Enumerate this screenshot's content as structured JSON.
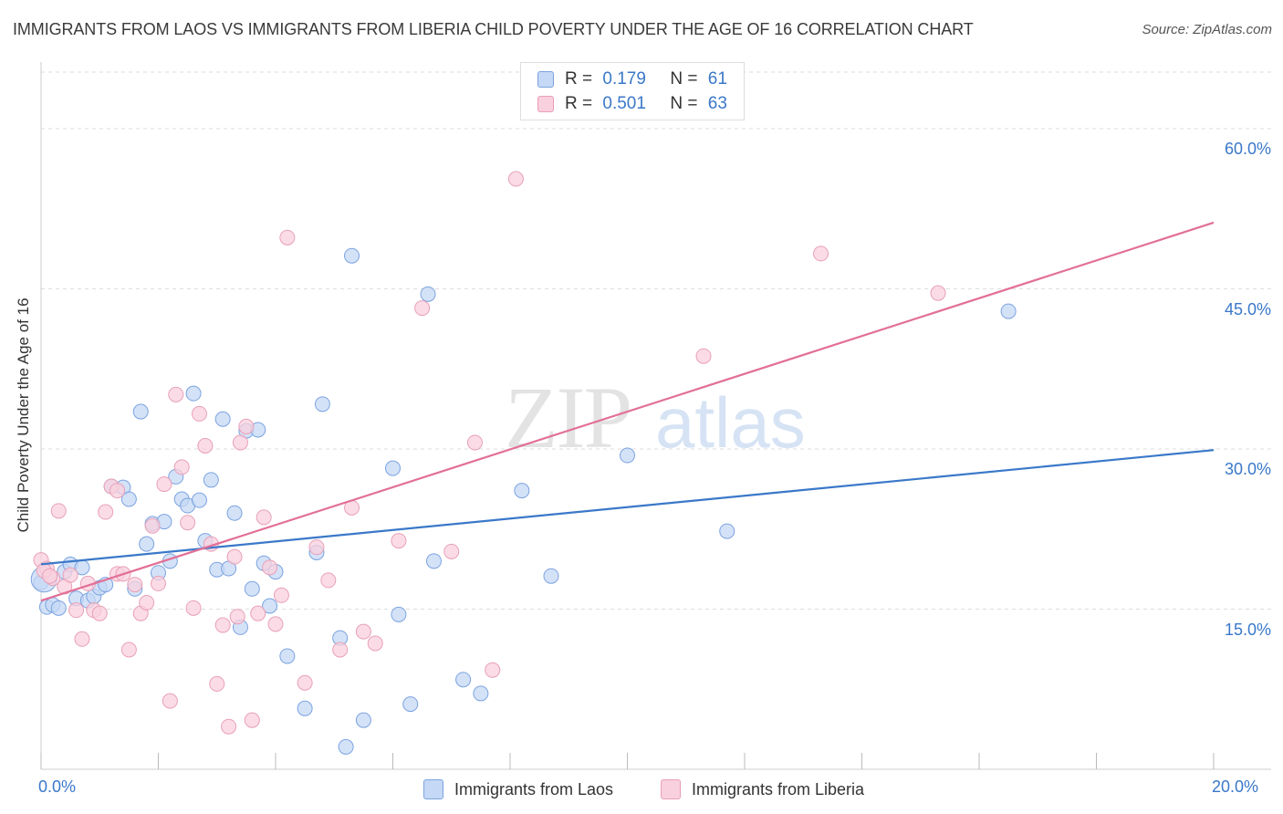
{
  "title": "IMMIGRANTS FROM LAOS VS IMMIGRANTS FROM LIBERIA CHILD POVERTY UNDER THE AGE OF 16 CORRELATION CHART",
  "source": "Source: ZipAtlas.com",
  "watermark": {
    "zip": "ZIP",
    "atlas": "atlas"
  },
  "legend": {
    "r_label": "R =",
    "n_label": "N =",
    "laos": {
      "r": "0.179",
      "n": "61"
    },
    "liberia": {
      "r": "0.501",
      "n": "63"
    }
  },
  "colors": {
    "laos_fill": "#c5d8f5",
    "laos_stroke": "#7ba3e0",
    "laos_line": "#3a78c9",
    "liberia_fill": "#f9d0dd",
    "liberia_stroke": "#e8a0b8",
    "liberia_line": "#e26f96",
    "tick_text": "#3a78c9",
    "grid": "#dddddd"
  },
  "chart_data": {
    "type": "scatter",
    "title": "IMMIGRANTS FROM LAOS VS IMMIGRANTS FROM LIBERIA CHILD POVERTY UNDER THE AGE OF 16 CORRELATION CHART",
    "xlabel": "",
    "ylabel": "Child Poverty Under the Age of 16",
    "xlim": [
      0,
      20
    ],
    "ylim": [
      0,
      60
    ],
    "x_tick_labels": [
      "0.0%",
      "20.0%"
    ],
    "y_ticks": [
      15,
      30,
      45,
      60
    ],
    "y_tick_labels": [
      "15.0%",
      "30.0%",
      "45.0%",
      "60.0%"
    ],
    "grid": true,
    "legend_position": "top-center",
    "series": [
      {
        "name": "Immigrants from Laos",
        "r": 0.179,
        "n": 61,
        "trend": {
          "x": [
            0,
            20
          ],
          "y": [
            19.2,
            29.9
          ]
        },
        "points": [
          [
            0.0,
            17.5
          ],
          [
            0.1,
            15.2
          ],
          [
            0.2,
            15.4
          ],
          [
            0.3,
            15.1
          ],
          [
            0.4,
            18.5
          ],
          [
            0.5,
            19.2
          ],
          [
            0.6,
            16.0
          ],
          [
            0.7,
            18.9
          ],
          [
            0.8,
            15.8
          ],
          [
            0.9,
            16.2
          ],
          [
            1.0,
            17.0
          ],
          [
            1.1,
            17.3
          ],
          [
            1.2,
            26.5
          ],
          [
            1.4,
            26.4
          ],
          [
            1.5,
            25.3
          ],
          [
            1.6,
            16.9
          ],
          [
            1.7,
            33.5
          ],
          [
            1.8,
            21.1
          ],
          [
            1.9,
            23.0
          ],
          [
            2.0,
            18.4
          ],
          [
            2.1,
            23.2
          ],
          [
            2.2,
            19.5
          ],
          [
            2.3,
            27.4
          ],
          [
            2.4,
            25.3
          ],
          [
            2.5,
            24.7
          ],
          [
            2.6,
            35.2
          ],
          [
            2.7,
            25.2
          ],
          [
            2.8,
            21.4
          ],
          [
            2.9,
            27.1
          ],
          [
            3.0,
            18.7
          ],
          [
            3.1,
            32.8
          ],
          [
            3.2,
            18.8
          ],
          [
            3.3,
            24.0
          ],
          [
            3.4,
            13.3
          ],
          [
            3.5,
            31.7
          ],
          [
            3.6,
            16.9
          ],
          [
            3.7,
            31.8
          ],
          [
            3.8,
            19.3
          ],
          [
            3.9,
            15.3
          ],
          [
            4.0,
            18.5
          ],
          [
            4.2,
            10.6
          ],
          [
            4.5,
            5.7
          ],
          [
            4.7,
            20.3
          ],
          [
            4.8,
            34.2
          ],
          [
            5.1,
            12.3
          ],
          [
            5.2,
            2.1
          ],
          [
            5.3,
            48.1
          ],
          [
            5.5,
            4.6
          ],
          [
            6.0,
            28.2
          ],
          [
            6.1,
            14.5
          ],
          [
            6.3,
            6.1
          ],
          [
            6.6,
            44.5
          ],
          [
            6.7,
            19.5
          ],
          [
            7.2,
            8.4
          ],
          [
            7.5,
            7.1
          ],
          [
            8.2,
            26.1
          ],
          [
            8.7,
            18.1
          ],
          [
            10.0,
            29.4
          ],
          [
            11.7,
            22.3
          ],
          [
            16.5,
            42.9
          ],
          [
            0.05,
            17.8
          ]
        ]
      },
      {
        "name": "Immigrants from Liberia",
        "r": 0.501,
        "n": 63,
        "trend": {
          "x": [
            0,
            20
          ],
          "y": [
            15.8,
            51.2
          ]
        },
        "points": [
          [
            0.0,
            19.6
          ],
          [
            0.1,
            18.8
          ],
          [
            0.2,
            17.9
          ],
          [
            0.3,
            24.2
          ],
          [
            0.4,
            17.1
          ],
          [
            0.5,
            18.2
          ],
          [
            0.6,
            14.9
          ],
          [
            0.7,
            12.2
          ],
          [
            0.8,
            17.4
          ],
          [
            0.9,
            14.9
          ],
          [
            1.0,
            14.6
          ],
          [
            1.1,
            24.1
          ],
          [
            1.2,
            26.5
          ],
          [
            1.3,
            26.1
          ],
          [
            1.3,
            18.3
          ],
          [
            1.4,
            18.3
          ],
          [
            1.5,
            11.2
          ],
          [
            1.6,
            17.3
          ],
          [
            1.7,
            14.6
          ],
          [
            1.8,
            15.6
          ],
          [
            1.9,
            22.8
          ],
          [
            2.0,
            17.4
          ],
          [
            2.1,
            26.7
          ],
          [
            2.2,
            6.4
          ],
          [
            2.3,
            35.1
          ],
          [
            2.4,
            28.3
          ],
          [
            2.5,
            23.1
          ],
          [
            2.6,
            15.1
          ],
          [
            2.7,
            33.3
          ],
          [
            2.8,
            30.3
          ],
          [
            2.9,
            21.1
          ],
          [
            3.0,
            8.0
          ],
          [
            3.1,
            13.5
          ],
          [
            3.2,
            4.0
          ],
          [
            3.3,
            19.9
          ],
          [
            3.4,
            30.6
          ],
          [
            3.5,
            32.1
          ],
          [
            3.6,
            4.6
          ],
          [
            3.7,
            14.6
          ],
          [
            3.8,
            23.6
          ],
          [
            3.9,
            18.9
          ],
          [
            4.0,
            13.6
          ],
          [
            4.1,
            16.3
          ],
          [
            4.2,
            49.8
          ],
          [
            4.5,
            8.1
          ],
          [
            4.7,
            20.8
          ],
          [
            4.9,
            17.7
          ],
          [
            5.1,
            11.2
          ],
          [
            5.3,
            24.5
          ],
          [
            5.5,
            12.9
          ],
          [
            5.7,
            11.8
          ],
          [
            6.1,
            21.4
          ],
          [
            6.5,
            43.2
          ],
          [
            7.0,
            20.4
          ],
          [
            7.4,
            30.6
          ],
          [
            7.7,
            9.3
          ],
          [
            8.1,
            55.3
          ],
          [
            11.3,
            38.7
          ],
          [
            13.3,
            48.3
          ],
          [
            15.3,
            44.6
          ],
          [
            0.05,
            18.6
          ],
          [
            0.15,
            18.1
          ],
          [
            3.35,
            14.3
          ]
        ]
      }
    ]
  },
  "bottom_legend": {
    "laos": "Immigrants from Laos",
    "liberia": "Immigrants from Liberia"
  }
}
